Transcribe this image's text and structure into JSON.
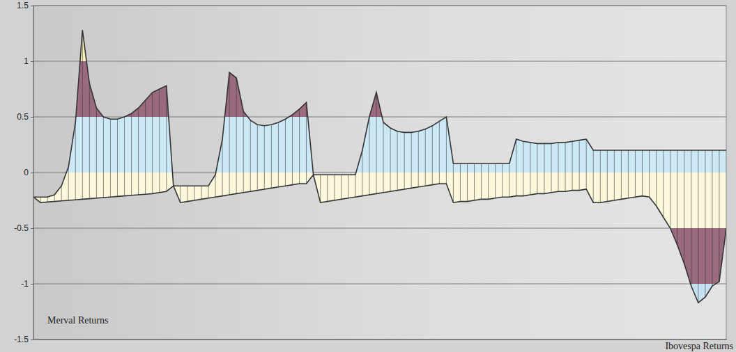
{
  "chart_data": {
    "type": "area",
    "xlabel": "Ibovespa Returns",
    "ylabel": "Merval Returns",
    "x": [
      0,
      1,
      2,
      3,
      4,
      5,
      6,
      7,
      8,
      9,
      10,
      11,
      12,
      13,
      14,
      15,
      16,
      17,
      18,
      19,
      20,
      21,
      22,
      23,
      24,
      25,
      26,
      27,
      28,
      29,
      30,
      31,
      32,
      33,
      34,
      35,
      36,
      37,
      38,
      39,
      40,
      41,
      42,
      43,
      44,
      45,
      46,
      47,
      48,
      49,
      50,
      51,
      52,
      53,
      54,
      55,
      56,
      57,
      58,
      59,
      60,
      61,
      62,
      63,
      64,
      65,
      66,
      67,
      68,
      69,
      70,
      71,
      72,
      73,
      74,
      75,
      76,
      77,
      78,
      79,
      80,
      81,
      82,
      83,
      84,
      85,
      86,
      87,
      88,
      89,
      90,
      91,
      92,
      93,
      94,
      95,
      96,
      97,
      98,
      99
    ],
    "xlim": [
      0,
      99
    ],
    "ylim": [
      -1.5,
      1.5
    ],
    "yticks": [
      -1.5,
      -1,
      -0.5,
      0,
      0.5,
      1,
      1.5
    ],
    "grid": true,
    "tick_labels": "y",
    "series": [
      {
        "color": "#333333",
        "values": [
          -0.22,
          -0.22,
          -0.22,
          -0.2,
          -0.12,
          0.05,
          0.45,
          1.28,
          0.8,
          0.58,
          0.5,
          0.48,
          0.48,
          0.5,
          0.53,
          0.58,
          0.65,
          0.72,
          0.75,
          0.78,
          -0.12,
          -0.12,
          -0.12,
          -0.12,
          -0.12,
          -0.12,
          -0.02,
          0.3,
          0.9,
          0.85,
          0.55,
          0.47,
          0.43,
          0.42,
          0.43,
          0.45,
          0.48,
          0.52,
          0.57,
          0.63,
          -0.02,
          -0.02,
          -0.02,
          -0.02,
          -0.02,
          -0.02,
          -0.02,
          0.2,
          0.5,
          0.72,
          0.45,
          0.4,
          0.37,
          0.36,
          0.36,
          0.37,
          0.39,
          0.42,
          0.46,
          0.5,
          0.08,
          0.08,
          0.08,
          0.08,
          0.08,
          0.08,
          0.08,
          0.08,
          0.08,
          0.3,
          0.28,
          0.27,
          0.26,
          0.26,
          0.26,
          0.27,
          0.27,
          0.28,
          0.29,
          0.3,
          0.2,
          0.2,
          0.2,
          0.2,
          0.2,
          0.2,
          0.2,
          0.2,
          0.2,
          0.2,
          0.2,
          0.2,
          0.2,
          0.2,
          0.2,
          0.2,
          0.2,
          0.2,
          0.2,
          0.2
        ]
      },
      {
        "color": "#333333",
        "values": [
          -0.22,
          -0.27,
          -0.265,
          -0.26,
          -0.255,
          -0.25,
          -0.245,
          -0.24,
          -0.235,
          -0.23,
          -0.225,
          -0.22,
          -0.215,
          -0.21,
          -0.205,
          -0.2,
          -0.195,
          -0.19,
          -0.18,
          -0.17,
          -0.12,
          -0.27,
          -0.26,
          -0.25,
          -0.24,
          -0.23,
          -0.22,
          -0.21,
          -0.2,
          -0.19,
          -0.18,
          -0.17,
          -0.16,
          -0.15,
          -0.14,
          -0.13,
          -0.12,
          -0.11,
          -0.1,
          -0.1,
          -0.02,
          -0.27,
          -0.26,
          -0.25,
          -0.24,
          -0.23,
          -0.22,
          -0.21,
          -0.2,
          -0.19,
          -0.18,
          -0.17,
          -0.16,
          -0.15,
          -0.14,
          -0.13,
          -0.12,
          -0.11,
          -0.1,
          -0.1,
          -0.27,
          -0.26,
          -0.26,
          -0.25,
          -0.24,
          -0.24,
          -0.23,
          -0.22,
          -0.22,
          -0.21,
          -0.21,
          -0.2,
          -0.19,
          -0.19,
          -0.18,
          -0.17,
          -0.17,
          -0.16,
          -0.16,
          -0.15,
          -0.27,
          -0.27,
          -0.26,
          -0.25,
          -0.24,
          -0.23,
          -0.22,
          -0.21,
          -0.22,
          -0.3,
          -0.4,
          -0.5,
          -0.65,
          -0.82,
          -1.02,
          -1.17,
          -1.12,
          -1.02,
          -0.98,
          -0.5
        ]
      }
    ]
  }
}
